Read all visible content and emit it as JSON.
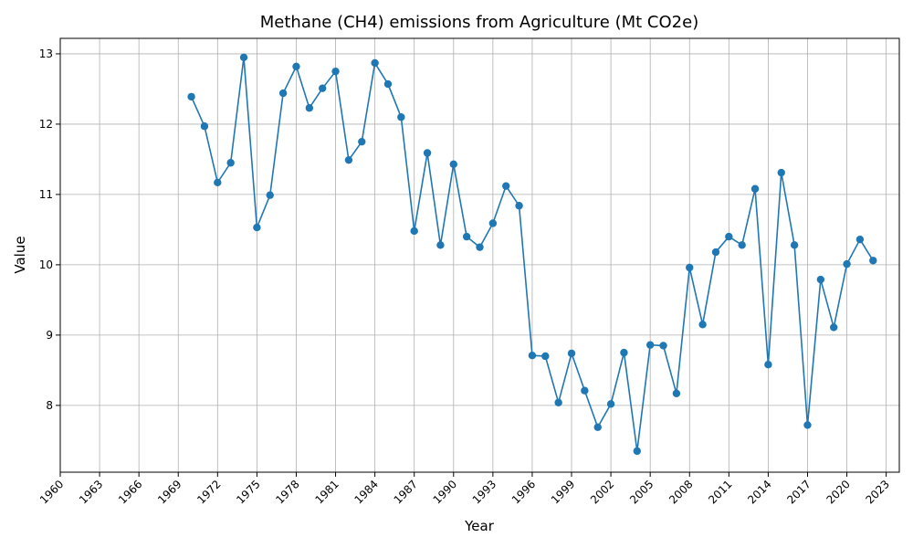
{
  "chart_data": {
    "type": "line",
    "title": "Methane (CH4) emissions from Agriculture (Mt CO2e)",
    "xlabel": "Year",
    "ylabel": "Value",
    "grid": true,
    "xlim": [
      1960,
      2024
    ],
    "ylim": [
      7.05,
      13.22
    ],
    "x_ticks": [
      1960,
      1963,
      1966,
      1969,
      1972,
      1975,
      1978,
      1981,
      1984,
      1987,
      1990,
      1993,
      1996,
      1999,
      2002,
      2005,
      2008,
      2011,
      2014,
      2017,
      2020,
      2023
    ],
    "y_ticks": [
      8,
      9,
      10,
      11,
      12,
      13
    ],
    "color": "#1f77b4",
    "x": [
      1970,
      1971,
      1972,
      1973,
      1974,
      1975,
      1976,
      1977,
      1978,
      1979,
      1980,
      1981,
      1982,
      1983,
      1984,
      1985,
      1986,
      1987,
      1988,
      1989,
      1990,
      1991,
      1992,
      1993,
      1994,
      1995,
      1996,
      1997,
      1998,
      1999,
      2000,
      2001,
      2002,
      2003,
      2004,
      2005,
      2006,
      2007,
      2008,
      2009,
      2010,
      2011,
      2012,
      2013,
      2014,
      2015,
      2016,
      2017,
      2018,
      2019,
      2020,
      2021,
      2022
    ],
    "values": [
      12.39,
      11.97,
      11.17,
      11.45,
      12.95,
      10.53,
      10.99,
      12.44,
      12.82,
      12.23,
      12.51,
      12.75,
      11.49,
      11.75,
      12.87,
      12.57,
      12.1,
      10.48,
      11.59,
      10.28,
      11.43,
      10.4,
      10.25,
      10.59,
      11.12,
      10.84,
      8.71,
      8.7,
      8.04,
      8.74,
      8.21,
      7.69,
      8.02,
      8.75,
      7.35,
      8.86,
      8.85,
      8.17,
      9.96,
      9.15,
      10.18,
      10.4,
      10.28,
      11.08,
      8.58,
      11.31,
      10.28,
      7.72,
      9.79,
      9.11,
      10.01,
      10.36,
      10.06
    ]
  }
}
